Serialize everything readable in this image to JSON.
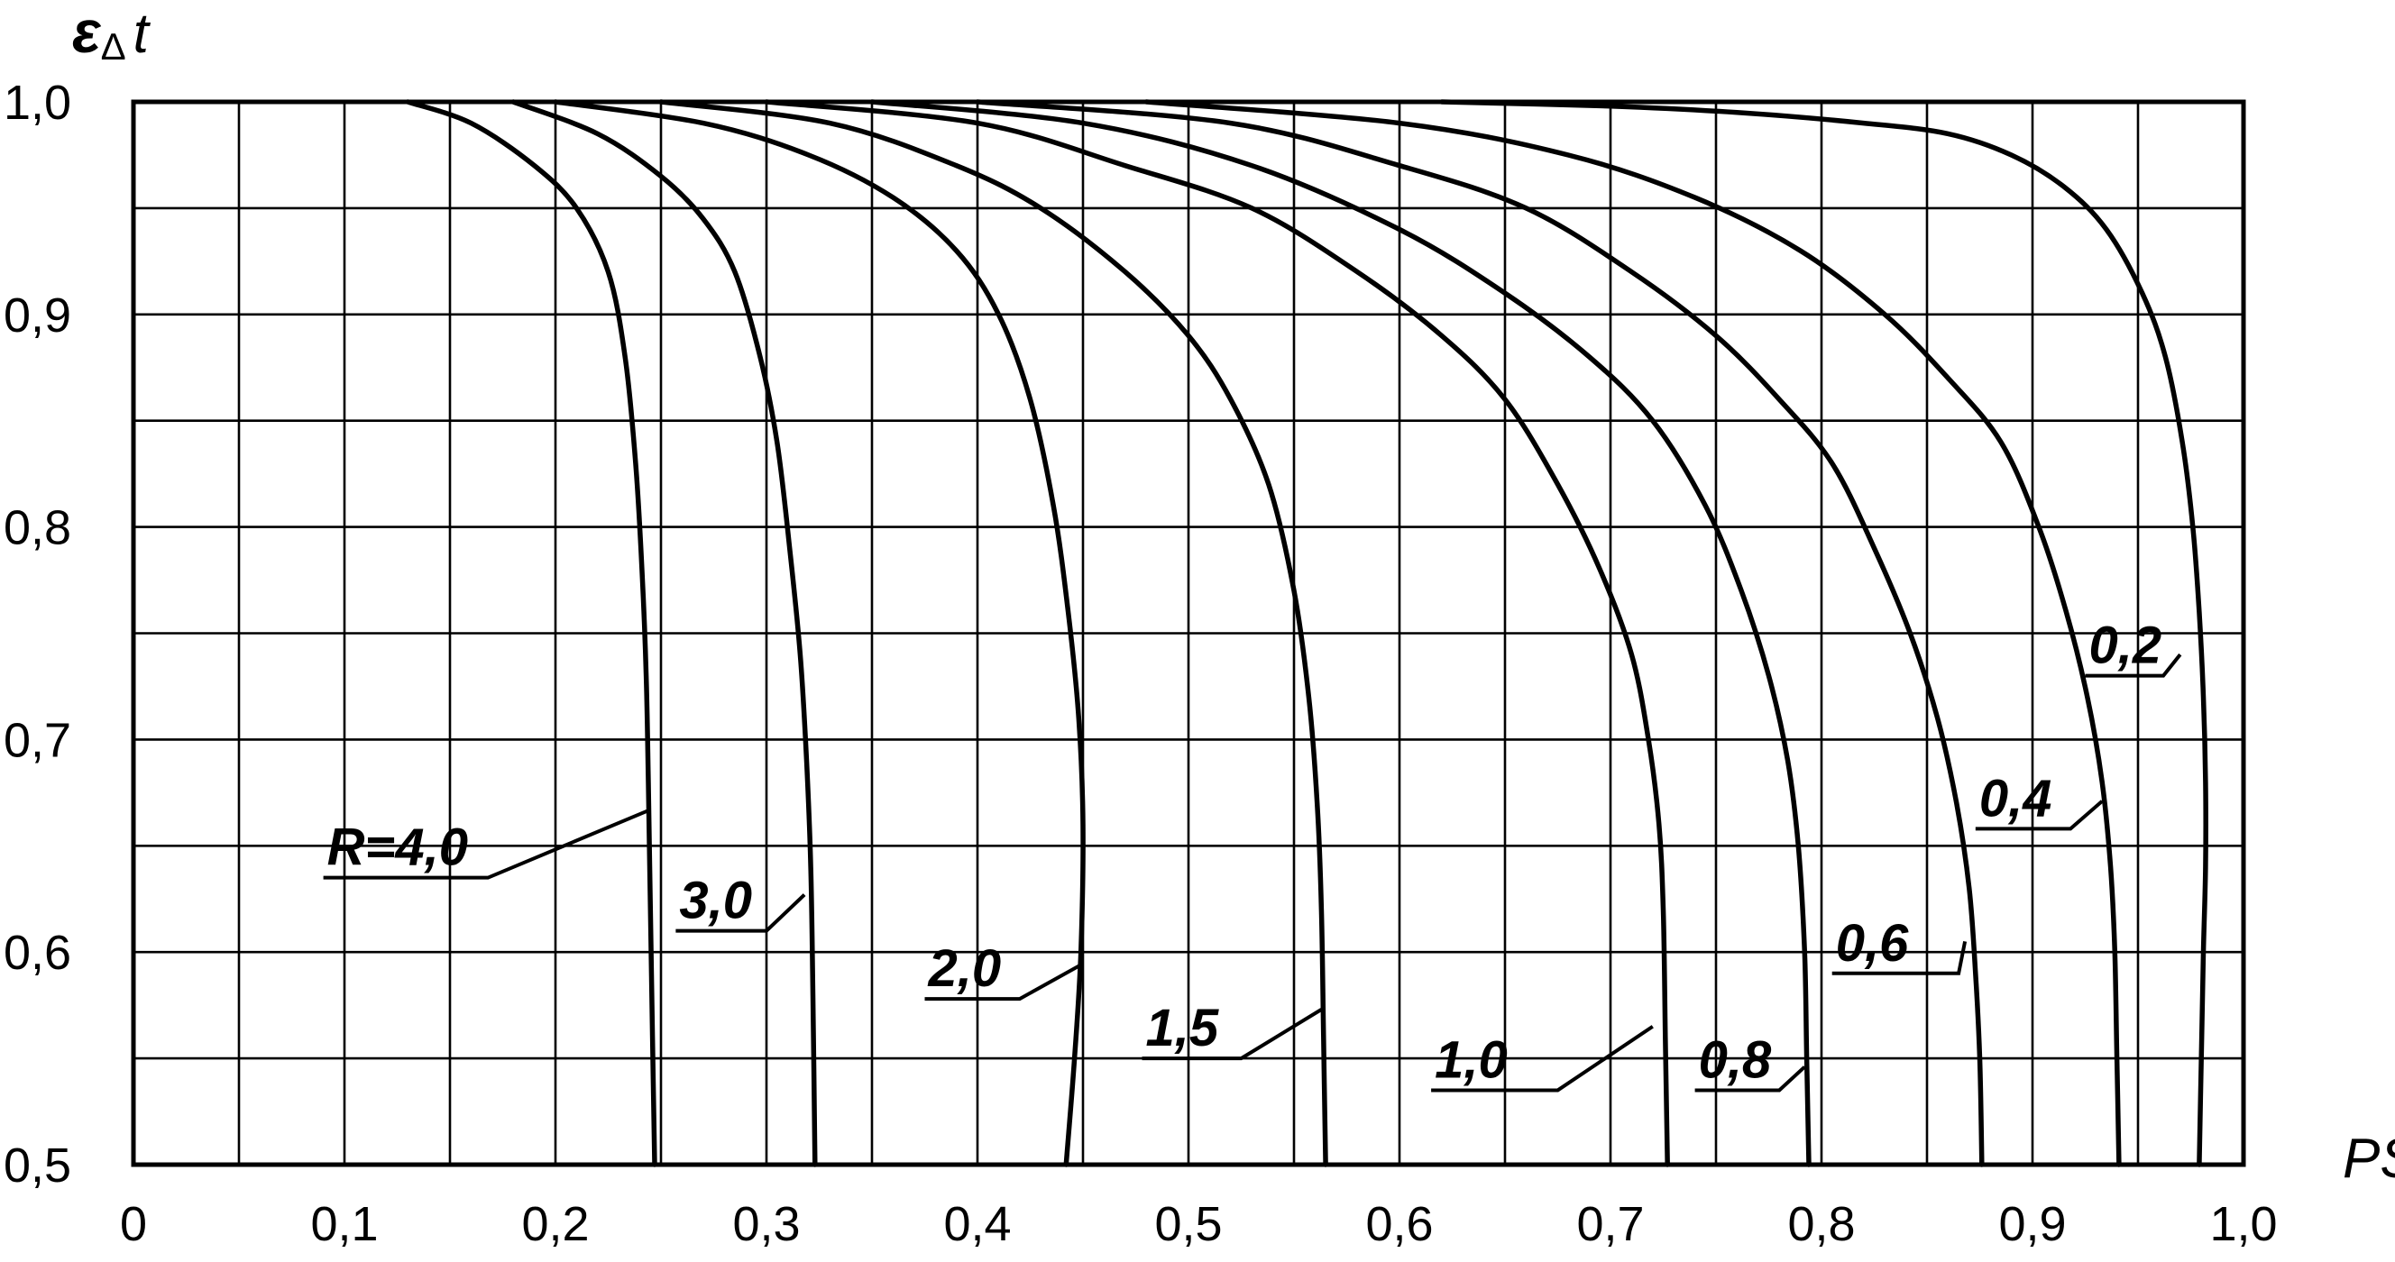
{
  "chart_data": {
    "type": "line",
    "title": "",
    "xlabel": "PS",
    "ylabel_main": "ε",
    "ylabel_sub": "Δ",
    "ylabel_tail": "t",
    "xlim": [
      0,
      1.0
    ],
    "ylim": [
      0.5,
      1.0
    ],
    "grid": "on",
    "x_minor_step": 0.05,
    "y_minor_step": 0.05,
    "x_ticks": [
      "0",
      "0,1",
      "0,2",
      "0,3",
      "0,4",
      "0,5",
      "0,6",
      "0,7",
      "0,8",
      "0,9",
      "1,0"
    ],
    "y_ticks": [
      "0,5",
      "0,6",
      "0,7",
      "0,8",
      "0,9",
      "1,0"
    ],
    "series": [
      {
        "name": "R=4,0",
        "points": [
          [
            0.13,
            1.0
          ],
          [
            0.16,
            0.99
          ],
          [
            0.19,
            0.97
          ],
          [
            0.21,
            0.95
          ],
          [
            0.225,
            0.92
          ],
          [
            0.233,
            0.88
          ],
          [
            0.238,
            0.83
          ],
          [
            0.241,
            0.78
          ],
          [
            0.243,
            0.73
          ],
          [
            0.244,
            0.68
          ],
          [
            0.245,
            0.62
          ],
          [
            0.246,
            0.56
          ],
          [
            0.247,
            0.5
          ]
        ],
        "label_anchor": [
          0.245,
          0.667
        ],
        "label_pos": [
          0.09,
          0.635
        ],
        "label_shelf": [
          0.09,
          0.168
        ]
      },
      {
        "name": "3,0",
        "points": [
          [
            0.18,
            1.0
          ],
          [
            0.22,
            0.985
          ],
          [
            0.25,
            0.965
          ],
          [
            0.27,
            0.945
          ],
          [
            0.285,
            0.92
          ],
          [
            0.297,
            0.88
          ],
          [
            0.305,
            0.84
          ],
          [
            0.311,
            0.79
          ],
          [
            0.316,
            0.74
          ],
          [
            0.319,
            0.69
          ],
          [
            0.321,
            0.64
          ],
          [
            0.322,
            0.58
          ],
          [
            0.323,
            0.5
          ]
        ],
        "label_anchor": [
          0.318,
          0.627
        ],
        "label_pos": [
          0.257,
          0.61
        ],
        "label_shelf": [
          0.257,
          0.3
        ]
      },
      {
        "name": "2,0",
        "points": [
          [
            0.2,
            1.0
          ],
          [
            0.27,
            0.99
          ],
          [
            0.32,
            0.975
          ],
          [
            0.36,
            0.955
          ],
          [
            0.39,
            0.93
          ],
          [
            0.41,
            0.9
          ],
          [
            0.425,
            0.86
          ],
          [
            0.436,
            0.81
          ],
          [
            0.443,
            0.76
          ],
          [
            0.448,
            0.71
          ],
          [
            0.45,
            0.66
          ],
          [
            0.449,
            0.6
          ],
          [
            0.446,
            0.55
          ],
          [
            0.442,
            0.5
          ]
        ],
        "label_anchor": [
          0.449,
          0.594
        ],
        "label_pos": [
          0.375,
          0.578
        ],
        "label_shelf": [
          0.375,
          0.42
        ]
      },
      {
        "name": "1,5",
        "points": [
          [
            0.25,
            1.0
          ],
          [
            0.33,
            0.99
          ],
          [
            0.39,
            0.97
          ],
          [
            0.43,
            0.95
          ],
          [
            0.47,
            0.92
          ],
          [
            0.5,
            0.89
          ],
          [
            0.52,
            0.86
          ],
          [
            0.538,
            0.82
          ],
          [
            0.55,
            0.77
          ],
          [
            0.557,
            0.72
          ],
          [
            0.561,
            0.67
          ],
          [
            0.563,
            0.62
          ],
          [
            0.564,
            0.56
          ],
          [
            0.565,
            0.5
          ]
        ],
        "label_anchor": [
          0.563,
          0.573
        ],
        "label_pos": [
          0.478,
          0.55
        ],
        "label_shelf": [
          0.478,
          0.525
        ]
      },
      {
        "name": "1,0",
        "points": [
          [
            0.3,
            1.0
          ],
          [
            0.4,
            0.99
          ],
          [
            0.47,
            0.97
          ],
          [
            0.53,
            0.95
          ],
          [
            0.58,
            0.92
          ],
          [
            0.62,
            0.89
          ],
          [
            0.65,
            0.86
          ],
          [
            0.675,
            0.82
          ],
          [
            0.695,
            0.78
          ],
          [
            0.71,
            0.74
          ],
          [
            0.718,
            0.7
          ],
          [
            0.723,
            0.66
          ],
          [
            0.725,
            0.62
          ],
          [
            0.726,
            0.56
          ],
          [
            0.727,
            0.5
          ]
        ],
        "label_anchor": [
          0.72,
          0.565
        ],
        "label_pos": [
          0.615,
          0.535
        ],
        "label_shelf": [
          0.615,
          0.675
        ]
      },
      {
        "name": "0,8",
        "points": [
          [
            0.35,
            1.0
          ],
          [
            0.45,
            0.99
          ],
          [
            0.53,
            0.97
          ],
          [
            0.6,
            0.94
          ],
          [
            0.65,
            0.91
          ],
          [
            0.69,
            0.88
          ],
          [
            0.72,
            0.85
          ],
          [
            0.745,
            0.81
          ],
          [
            0.762,
            0.77
          ],
          [
            0.775,
            0.73
          ],
          [
            0.784,
            0.69
          ],
          [
            0.789,
            0.65
          ],
          [
            0.792,
            0.6
          ],
          [
            0.793,
            0.55
          ],
          [
            0.794,
            0.5
          ]
        ],
        "label_anchor": [
          0.792,
          0.546
        ],
        "label_pos": [
          0.74,
          0.535
        ],
        "label_shelf": [
          0.74,
          0.78
        ]
      },
      {
        "name": "0,6",
        "points": [
          [
            0.4,
            1.0
          ],
          [
            0.52,
            0.99
          ],
          [
            0.6,
            0.97
          ],
          [
            0.66,
            0.95
          ],
          [
            0.71,
            0.92
          ],
          [
            0.75,
            0.89
          ],
          [
            0.78,
            0.86
          ],
          [
            0.805,
            0.83
          ],
          [
            0.825,
            0.79
          ],
          [
            0.842,
            0.75
          ],
          [
            0.855,
            0.71
          ],
          [
            0.864,
            0.67
          ],
          [
            0.87,
            0.63
          ],
          [
            0.873,
            0.59
          ],
          [
            0.875,
            0.55
          ],
          [
            0.876,
            0.5
          ]
        ],
        "label_anchor": [
          0.868,
          0.605
        ],
        "label_pos": [
          0.805,
          0.59
        ],
        "label_shelf": [
          0.805,
          0.865
        ]
      },
      {
        "name": "0,4",
        "points": [
          [
            0.48,
            1.0
          ],
          [
            0.6,
            0.99
          ],
          [
            0.68,
            0.975
          ],
          [
            0.74,
            0.955
          ],
          [
            0.79,
            0.93
          ],
          [
            0.83,
            0.9
          ],
          [
            0.86,
            0.87
          ],
          [
            0.885,
            0.84
          ],
          [
            0.903,
            0.8
          ],
          [
            0.916,
            0.76
          ],
          [
            0.926,
            0.72
          ],
          [
            0.933,
            0.68
          ],
          [
            0.937,
            0.64
          ],
          [
            0.939,
            0.6
          ],
          [
            0.94,
            0.55
          ],
          [
            0.941,
            0.5
          ]
        ],
        "label_anchor": [
          0.933,
          0.671
        ],
        "label_pos": [
          0.873,
          0.658
        ],
        "label_shelf": [
          0.873,
          0.918
        ]
      },
      {
        "name": "0,2",
        "points": [
          [
            0.62,
            1.0
          ],
          [
            0.7,
            0.998
          ],
          [
            0.76,
            0.995
          ],
          [
            0.82,
            0.99
          ],
          [
            0.86,
            0.985
          ],
          [
            0.89,
            0.975
          ],
          [
            0.915,
            0.96
          ],
          [
            0.935,
            0.94
          ],
          [
            0.952,
            0.91
          ],
          [
            0.963,
            0.88
          ],
          [
            0.971,
            0.84
          ],
          [
            0.976,
            0.8
          ],
          [
            0.979,
            0.76
          ],
          [
            0.981,
            0.72
          ],
          [
            0.982,
            0.68
          ],
          [
            0.982,
            0.64
          ],
          [
            0.981,
            0.6
          ],
          [
            0.98,
            0.55
          ],
          [
            0.979,
            0.5
          ]
        ],
        "label_anchor": [
          0.97,
          0.74
        ],
        "label_pos": [
          0.925,
          0.73
        ],
        "label_shelf": [
          0.925,
          0.962
        ]
      }
    ]
  }
}
